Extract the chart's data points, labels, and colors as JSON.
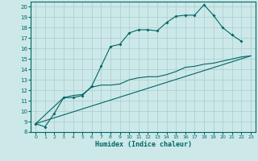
{
  "xlabel": "Humidex (Indice chaleur)",
  "bg_color": "#cce8e8",
  "grid_color": "#aacccc",
  "line_color": "#006666",
  "xlim": [
    -0.5,
    23.5
  ],
  "ylim": [
    8,
    20.5
  ],
  "xticks": [
    0,
    1,
    2,
    3,
    4,
    5,
    6,
    7,
    8,
    9,
    10,
    11,
    12,
    13,
    14,
    15,
    16,
    17,
    18,
    19,
    20,
    21,
    22,
    23
  ],
  "yticks": [
    8,
    9,
    10,
    11,
    12,
    13,
    14,
    15,
    16,
    17,
    18,
    19,
    20
  ],
  "line1_x": [
    0,
    1,
    2,
    3,
    4,
    5,
    6,
    7,
    8,
    9,
    10,
    11,
    12,
    13,
    14,
    15,
    16,
    17,
    18,
    19,
    20,
    21,
    22
  ],
  "line1_y": [
    8.8,
    8.5,
    9.8,
    11.3,
    11.3,
    11.5,
    12.4,
    14.3,
    16.2,
    16.4,
    17.5,
    17.8,
    17.8,
    17.7,
    18.5,
    19.1,
    19.2,
    19.2,
    20.2,
    19.2,
    18.0,
    17.3,
    16.7
  ],
  "line2_x": [
    0,
    3,
    4,
    5,
    6,
    7,
    8,
    9,
    10,
    11,
    12,
    13,
    14,
    15,
    16,
    17,
    18,
    19,
    20,
    21,
    22,
    23
  ],
  "line2_y": [
    8.8,
    11.3,
    11.5,
    11.6,
    12.3,
    12.5,
    12.5,
    12.6,
    13.0,
    13.2,
    13.3,
    13.3,
    13.5,
    13.8,
    14.2,
    14.3,
    14.5,
    14.6,
    14.8,
    15.0,
    15.2,
    15.3
  ],
  "line3_x": [
    0,
    23
  ],
  "line3_y": [
    8.8,
    15.3
  ]
}
